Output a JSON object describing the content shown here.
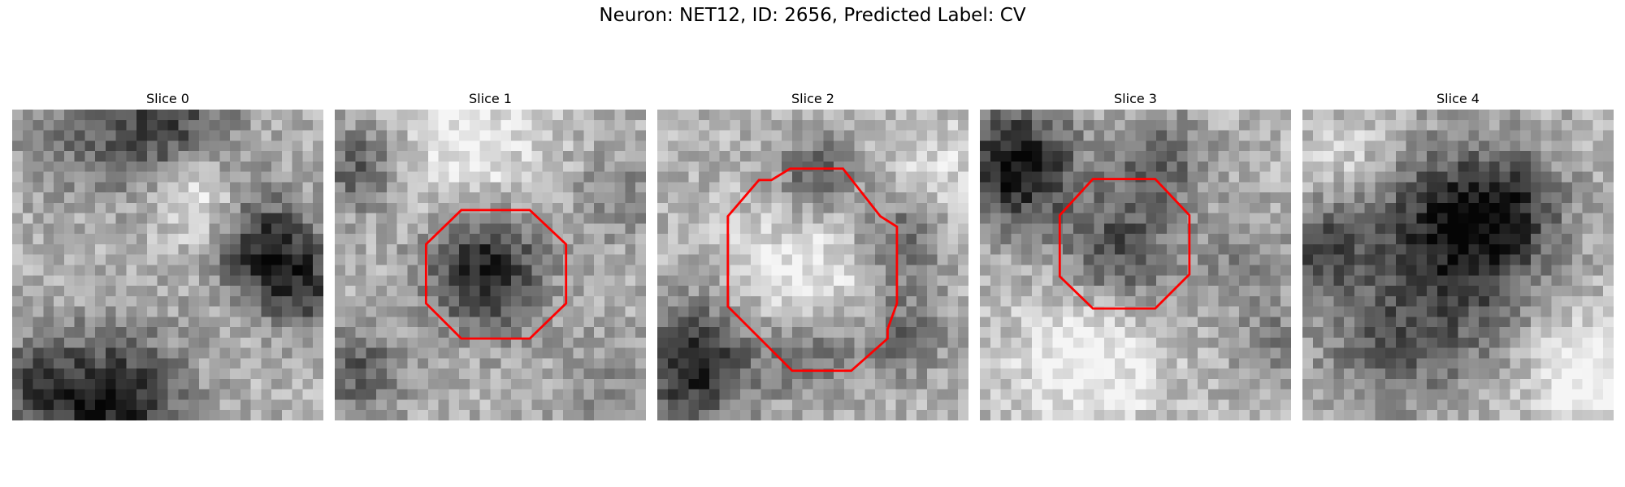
{
  "figure": {
    "title": "Neuron: NET12, ID: 2656, Predicted Label: CV"
  },
  "colors": {
    "contour": "#ff0000",
    "background": "#ffffff"
  },
  "panels": [
    {
      "title": "Slice 0",
      "has_contour": false
    },
    {
      "title": "Slice 1",
      "has_contour": true
    },
    {
      "title": "Slice 2",
      "has_contour": true
    },
    {
      "title": "Slice 3",
      "has_contour": true
    },
    {
      "title": "Slice 4",
      "has_contour": false
    }
  ]
}
